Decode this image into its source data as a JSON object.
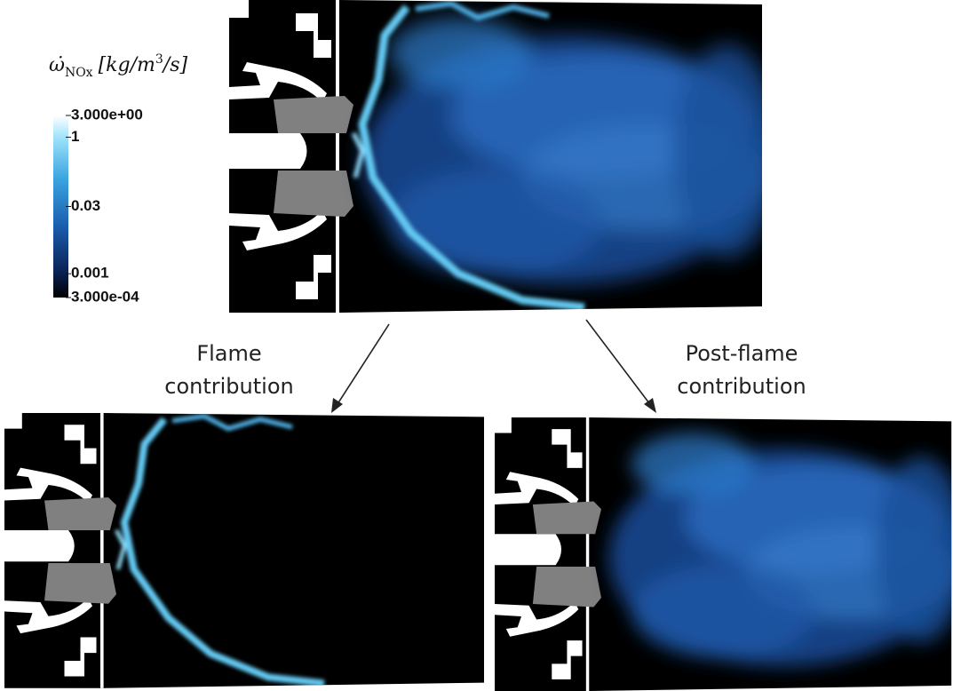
{
  "colorbar": {
    "title": {
      "symbol": "ω̇",
      "subscript": "NOx",
      "unit_start": "[kg/m",
      "unit_sup": "3",
      "unit_end": "/s]"
    },
    "scale": "log",
    "range": [
      0.0003,
      3
    ],
    "ticks": [
      {
        "value": 3,
        "label": "3.000e+00"
      },
      1,
      0.03,
      0.001,
      {
        "value": 0.0003,
        "label": "3.000e-04"
      }
    ]
  },
  "panels": [
    {
      "label_lines": [
        "Flame",
        "contribution"
      ]
    },
    {
      "label_lines": [
        "Post-flame",
        "contribution"
      ]
    }
  ]
}
